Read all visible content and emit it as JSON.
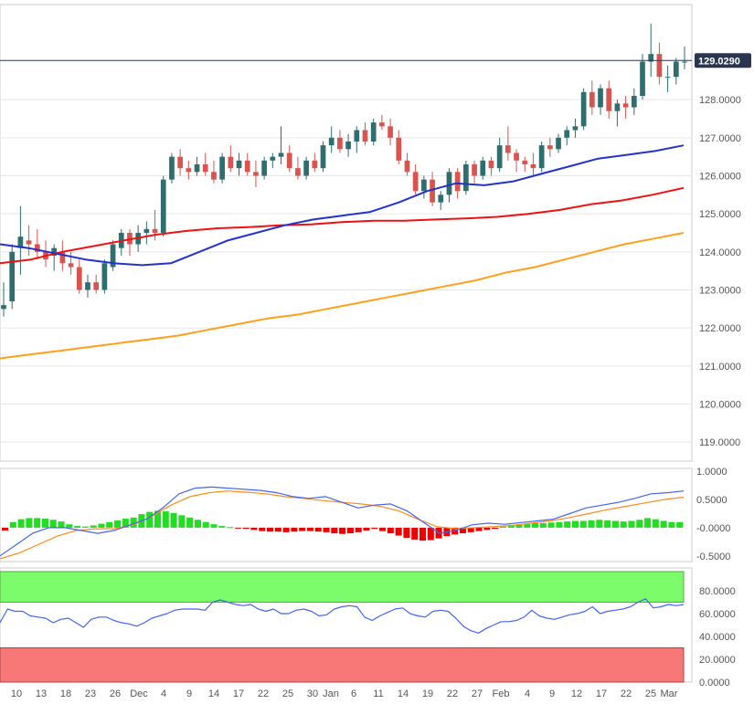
{
  "colors": {
    "up": "#2e6e6e",
    "down": "#d9534f",
    "ma_fast": "#2233cc",
    "ma_mid": "#ee1111",
    "ma_slow": "#ff9f1a",
    "hist_up": "#22dd22",
    "hist_down": "#ee0000",
    "osc_line": "#4466ee",
    "osc_signal": "#ff8c1a",
    "overbought_zone": "#7cfc6b",
    "oversold_zone": "#f87878",
    "grid": "#e6e6e6",
    "price_tag": "#2a3550"
  },
  "chart_data": [
    {
      "type": "candlestick",
      "last_price": "129.0290",
      "ylim": [
        118.5,
        130.5
      ],
      "y_ticks": [
        "119.0000",
        "120.0000",
        "121.0000",
        "122.0000",
        "123.0000",
        "124.0000",
        "125.0000",
        "126.0000",
        "127.0000",
        "128.0000"
      ],
      "x_ticks": [
        "10",
        "13",
        "18",
        "23",
        "26",
        "Dec",
        "4",
        "9",
        "14",
        "17",
        "22",
        "25",
        "30",
        "Jan",
        "6",
        "11",
        "14",
        "19",
        "22",
        "27",
        "Feb",
        "4",
        "9",
        "12",
        "17",
        "22",
        "25",
        "Mar"
      ],
      "ohlc_approx": [
        [
          122.5,
          123.2,
          122.3,
          122.6
        ],
        [
          122.7,
          124.2,
          122.5,
          124.0
        ],
        [
          124.1,
          125.2,
          123.4,
          124.4
        ],
        [
          124.3,
          124.7,
          123.9,
          124.2
        ],
        [
          124.2,
          124.6,
          123.8,
          124.0
        ],
        [
          124.0,
          124.3,
          123.6,
          123.8
        ],
        [
          123.9,
          124.2,
          123.5,
          124.1
        ],
        [
          124.0,
          124.3,
          123.5,
          123.7
        ],
        [
          123.7,
          124.0,
          123.4,
          123.6
        ],
        [
          123.6,
          123.8,
          122.9,
          123.0
        ],
        [
          123.0,
          123.4,
          122.8,
          123.2
        ],
        [
          123.2,
          123.4,
          122.9,
          123.0
        ],
        [
          123.0,
          123.8,
          122.9,
          123.7
        ],
        [
          123.6,
          124.3,
          123.5,
          124.2
        ],
        [
          124.1,
          124.6,
          123.9,
          124.5
        ],
        [
          124.5,
          124.6,
          123.9,
          124.2
        ],
        [
          124.2,
          124.7,
          124.0,
          124.5
        ],
        [
          124.5,
          124.8,
          124.2,
          124.6
        ],
        [
          124.6,
          125.1,
          124.3,
          124.5
        ],
        [
          124.5,
          126.0,
          124.4,
          125.9
        ],
        [
          125.9,
          126.6,
          125.8,
          126.5
        ],
        [
          126.5,
          126.7,
          126.0,
          126.2
        ],
        [
          126.2,
          126.4,
          125.9,
          126.1
        ],
        [
          126.1,
          126.5,
          126.0,
          126.3
        ],
        [
          126.3,
          126.6,
          126.0,
          126.1
        ],
        [
          126.1,
          126.4,
          125.8,
          125.9
        ],
        [
          125.9,
          126.6,
          125.8,
          126.5
        ],
        [
          126.5,
          126.8,
          126.1,
          126.2
        ],
        [
          126.2,
          126.6,
          126.0,
          126.4
        ],
        [
          126.4,
          126.6,
          126.0,
          126.1
        ],
        [
          126.1,
          126.4,
          125.7,
          126.0
        ],
        [
          126.0,
          126.5,
          125.9,
          126.4
        ],
        [
          126.4,
          126.6,
          126.2,
          126.5
        ],
        [
          126.5,
          127.3,
          126.3,
          126.6
        ],
        [
          126.6,
          126.8,
          126.1,
          126.2
        ],
        [
          126.2,
          126.5,
          125.9,
          126.0
        ],
        [
          126.0,
          126.5,
          125.9,
          126.4
        ],
        [
          126.4,
          126.6,
          126.1,
          126.2
        ],
        [
          126.2,
          126.9,
          126.1,
          126.8
        ],
        [
          126.8,
          127.3,
          126.6,
          127.0
        ],
        [
          127.0,
          127.2,
          126.6,
          126.7
        ],
        [
          126.7,
          127.1,
          126.5,
          126.9
        ],
        [
          126.9,
          127.3,
          126.6,
          127.2
        ],
        [
          127.2,
          127.4,
          126.8,
          126.9
        ],
        [
          126.9,
          127.5,
          126.8,
          127.4
        ],
        [
          127.4,
          127.6,
          127.2,
          127.3
        ],
        [
          127.3,
          127.5,
          126.8,
          127.0
        ],
        [
          127.0,
          127.2,
          126.3,
          126.4
        ],
        [
          126.4,
          126.6,
          126.0,
          126.1
        ],
        [
          126.1,
          126.3,
          125.5,
          125.6
        ],
        [
          125.6,
          126.0,
          125.4,
          125.9
        ],
        [
          125.9,
          126.1,
          125.2,
          125.3
        ],
        [
          125.3,
          125.6,
          125.1,
          125.5
        ],
        [
          125.5,
          126.2,
          125.3,
          126.1
        ],
        [
          126.1,
          126.2,
          125.4,
          125.6
        ],
        [
          125.6,
          126.4,
          125.5,
          126.3
        ],
        [
          126.3,
          126.4,
          125.8,
          126.0
        ],
        [
          126.0,
          126.5,
          125.9,
          126.4
        ],
        [
          126.4,
          126.5,
          126.0,
          126.2
        ],
        [
          126.2,
          127.0,
          126.1,
          126.8
        ],
        [
          126.8,
          127.3,
          126.4,
          126.6
        ],
        [
          126.6,
          126.7,
          126.1,
          126.4
        ],
        [
          126.4,
          126.5,
          126.1,
          126.3
        ],
        [
          126.3,
          126.6,
          126.0,
          126.2
        ],
        [
          126.2,
          126.9,
          126.1,
          126.8
        ],
        [
          126.8,
          127.0,
          126.5,
          126.7
        ],
        [
          126.7,
          127.1,
          126.6,
          127.0
        ],
        [
          127.0,
          127.3,
          126.8,
          127.2
        ],
        [
          127.2,
          127.5,
          127.0,
          127.3
        ],
        [
          127.3,
          128.3,
          127.2,
          128.2
        ],
        [
          128.2,
          128.5,
          127.6,
          127.8
        ],
        [
          127.8,
          128.4,
          127.6,
          128.3
        ],
        [
          128.3,
          128.5,
          127.5,
          127.7
        ],
        [
          127.7,
          128.0,
          127.3,
          127.9
        ],
        [
          127.9,
          128.1,
          127.5,
          127.8
        ],
        [
          127.8,
          128.3,
          127.6,
          128.1
        ],
        [
          128.1,
          129.2,
          128.0,
          129.0
        ],
        [
          129.0,
          130.0,
          128.6,
          129.2
        ],
        [
          129.2,
          129.5,
          128.4,
          128.6
        ],
        [
          128.6,
          128.9,
          128.2,
          128.6
        ],
        [
          128.6,
          129.1,
          128.4,
          129.0
        ],
        [
          129.0,
          129.4,
          128.8,
          129.0
        ]
      ],
      "ma_fast_approx": [
        124.2,
        124.1,
        123.95,
        123.8,
        123.7,
        123.65,
        123.7,
        124.0,
        124.3,
        124.5,
        124.7,
        124.85,
        124.95,
        125.05,
        125.3,
        125.6,
        125.8,
        125.75,
        125.85,
        126.05,
        126.25,
        126.45,
        126.55,
        126.65,
        126.8
      ],
      "ma_mid_approx": [
        123.7,
        123.8,
        124.0,
        124.15,
        124.3,
        124.45,
        124.55,
        124.62,
        124.65,
        124.7,
        124.72,
        124.78,
        124.82,
        124.82,
        124.85,
        124.88,
        124.92,
        125.0,
        125.1,
        125.25,
        125.35,
        125.5,
        125.68
      ],
      "ma_slow_approx": [
        121.2,
        121.3,
        121.4,
        121.5,
        121.6,
        121.7,
        121.8,
        121.95,
        122.1,
        122.25,
        122.35,
        122.5,
        122.65,
        122.8,
        122.95,
        123.1,
        123.25,
        123.45,
        123.6,
        123.8,
        124.0,
        124.2,
        124.35,
        124.5
      ]
    },
    {
      "type": "histogram",
      "ylim": [
        -0.6,
        1.05
      ],
      "y_ticks": [
        "1.0000",
        "0.5000",
        "-0.0000",
        "-0.5000"
      ],
      "hist_approx": [
        -0.05,
        0.1,
        0.15,
        0.17,
        0.17,
        0.16,
        0.14,
        0.11,
        0.06,
        0.03,
        0.02,
        0.04,
        0.07,
        0.1,
        0.13,
        0.16,
        0.18,
        0.24,
        0.28,
        0.3,
        0.29,
        0.26,
        0.22,
        0.18,
        0.14,
        0.1,
        0.06,
        0.03,
        0.01,
        -0.01,
        -0.02,
        -0.04,
        -0.06,
        -0.07,
        -0.07,
        -0.08,
        -0.07,
        -0.06,
        -0.06,
        -0.07,
        -0.08,
        -0.1,
        -0.11,
        -0.1,
        -0.08,
        -0.05,
        -0.02,
        -0.06,
        -0.1,
        -0.14,
        -0.18,
        -0.21,
        -0.23,
        -0.22,
        -0.19,
        -0.15,
        -0.12,
        -0.1,
        -0.08,
        -0.06,
        -0.04,
        -0.02,
        0.02,
        0.05,
        0.06,
        0.07,
        0.08,
        0.08,
        0.09,
        0.1,
        0.11,
        0.12,
        0.12,
        0.13,
        0.14,
        0.13,
        0.12,
        0.11,
        0.12,
        0.14,
        0.17,
        0.15,
        0.12,
        0.1,
        0.1
      ],
      "line_approx": [
        -0.5,
        -0.3,
        -0.1,
        0.0,
        0.0,
        -0.05,
        -0.1,
        -0.05,
        0.05,
        0.15,
        0.35,
        0.6,
        0.7,
        0.72,
        0.7,
        0.68,
        0.66,
        0.62,
        0.55,
        0.52,
        0.55,
        0.45,
        0.35,
        0.4,
        0.42,
        0.3,
        0.1,
        -0.1,
        -0.05,
        0.05,
        0.08,
        0.06,
        0.09,
        0.12,
        0.15,
        0.25,
        0.35,
        0.4,
        0.45,
        0.52,
        0.6,
        0.62,
        0.65
      ],
      "signal_approx": [
        -0.55,
        -0.45,
        -0.3,
        -0.15,
        -0.05,
        -0.02,
        -0.02,
        0.05,
        0.2,
        0.4,
        0.55,
        0.62,
        0.65,
        0.63,
        0.6,
        0.55,
        0.52,
        0.48,
        0.45,
        0.42,
        0.38,
        0.3,
        0.15,
        0.02,
        -0.02,
        0.0,
        0.02,
        0.04,
        0.08,
        0.12,
        0.18,
        0.25,
        0.32,
        0.38,
        0.44,
        0.5,
        0.54
      ]
    },
    {
      "type": "line",
      "ylim": [
        0,
        100
      ],
      "y_ticks": [
        "80.0000",
        "60.0000",
        "40.0000",
        "20.0000",
        "0.0000"
      ],
      "zones": [
        [
          70,
          100
        ],
        [
          0,
          30
        ]
      ],
      "line_approx": [
        52,
        64,
        62,
        62,
        58,
        57,
        56,
        52,
        55,
        56,
        52,
        48,
        55,
        57,
        57,
        54,
        52,
        51,
        49,
        52,
        56,
        58,
        60,
        63,
        64,
        64,
        64,
        63,
        70,
        72,
        70,
        68,
        67,
        68,
        64,
        62,
        64,
        60,
        60,
        63,
        64,
        62,
        58,
        59,
        64,
        66,
        67,
        66,
        57,
        54,
        58,
        61,
        64,
        65,
        60,
        58,
        57,
        62,
        63,
        62,
        56,
        49,
        45,
        43,
        47,
        50,
        53,
        53,
        54,
        57,
        63,
        58,
        56,
        55,
        57,
        59,
        60,
        62,
        66,
        60,
        62,
        63,
        64,
        66,
        70,
        73,
        65,
        66,
        68,
        67,
        68
      ]
    }
  ]
}
